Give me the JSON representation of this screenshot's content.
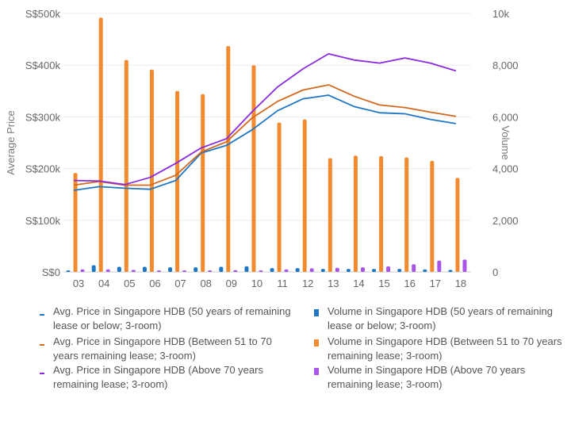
{
  "chart_data": {
    "type": "bar+line",
    "categories": [
      "03",
      "04",
      "05",
      "06",
      "07",
      "08",
      "09",
      "10",
      "11",
      "12",
      "13",
      "14",
      "15",
      "16",
      "17",
      "18"
    ],
    "yaxis_left": {
      "title": "Average Price",
      "min": 0,
      "max": 500000,
      "ticks": [
        0,
        100000,
        200000,
        300000,
        400000,
        500000
      ],
      "tick_labels": [
        "S$0",
        "S$100k",
        "S$200k",
        "S$300k",
        "S$400k",
        "S$500k"
      ]
    },
    "yaxis_right": {
      "title": "Volume",
      "min": 0,
      "max": 10000,
      "ticks": [
        0,
        2000,
        4000,
        6000,
        8000,
        10000
      ],
      "tick_labels": [
        "0",
        "2,000",
        "4,000",
        "6,000",
        "8,000",
        "10k"
      ]
    },
    "lines": [
      {
        "name": "Avg. Price in Singapore HDB (50 years of remaining lease or below; 3-room)",
        "color": "#1f77c4",
        "values": [
          158000,
          165000,
          162000,
          160000,
          177000,
          230000,
          245000,
          275000,
          312000,
          335000,
          342000,
          320000,
          308000,
          306000,
          295000,
          287000
        ]
      },
      {
        "name": "Avg. Price in Singapore HDB (Between 51 to 70 years remaining lease; 3-room)",
        "color": "#d2691e",
        "values": [
          168000,
          175000,
          168000,
          168000,
          187000,
          232000,
          252000,
          298000,
          330000,
          352000,
          362000,
          340000,
          323000,
          318000,
          309000,
          301000
        ]
      },
      {
        "name": "Avg. Price in Singapore HDB (Above 70 years remaining lease; 3-room)",
        "color": "#8a2be2",
        "values": [
          177000,
          176000,
          169000,
          183000,
          210000,
          240000,
          258000,
          310000,
          358000,
          393000,
          422000,
          410000,
          404000,
          414000,
          404000,
          389000
        ]
      }
    ],
    "bars": [
      {
        "name": "Volume in Singapore HDB (50 years of remaining lease or below; 3-room)",
        "color": "#1f77c4",
        "values": [
          60,
          260,
          200,
          200,
          180,
          180,
          200,
          220,
          150,
          150,
          120,
          120,
          120,
          120,
          100,
          80
        ]
      },
      {
        "name": "Volume in Singapore HDB (Between 51 to 70 years remaining lease; 3-room)",
        "color": "#f28a30",
        "values": [
          3830,
          9840,
          8200,
          7830,
          7000,
          6880,
          8740,
          8000,
          5780,
          5900,
          4400,
          4500,
          4480,
          4430,
          4300,
          3640
        ]
      },
      {
        "name": "Volume in Singapore HDB (Above 70 years remaining lease; 3-room)",
        "color": "#a855e8",
        "values": [
          100,
          100,
          80,
          60,
          60,
          60,
          70,
          60,
          100,
          140,
          160,
          180,
          220,
          300,
          440,
          480
        ]
      }
    ]
  }
}
